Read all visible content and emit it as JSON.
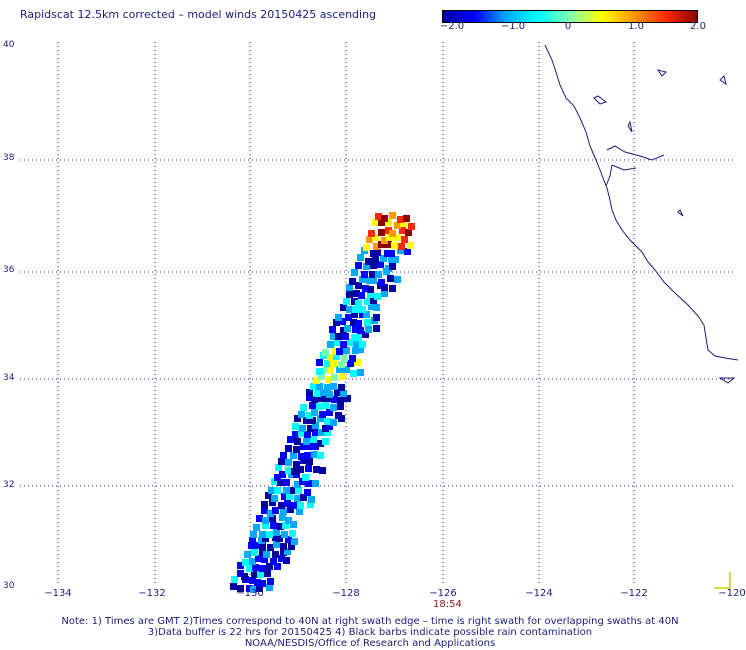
{
  "title": "Rapidscat 12.5km corrected – model winds 20150425 ascending",
  "colorbar": {
    "labels": [
      "−2.0",
      "−1.0",
      "0",
      "1.0",
      "2.0"
    ],
    "colors": [
      "#0000a0",
      "#0000ff",
      "#00aaff",
      "#00ffff",
      "#80ffb0",
      "#ffff00",
      "#ff9900",
      "#ff2a00",
      "#8b0000"
    ]
  },
  "y_labels": [
    "40",
    "38",
    "36",
    "34",
    "32",
    "30"
  ],
  "x_labels": [
    "−134",
    "−132",
    "−130",
    "−128",
    "−126",
    "−124",
    "−122",
    "−120"
  ],
  "time_label": "18:54",
  "notes": [
    "Note: 1) Times are GMT 2)Times correspond to 40N at right swath edge – time is right swath for overlapping swaths at 40N",
    "3)Data buffer is 22 hrs for 20150425 4) Black barbs indicate possible rain contamination",
    "NOAA/NESDIS/Office of Research and Applications"
  ],
  "map": {
    "lon_range": [
      -135,
      -120
    ],
    "lat_range": [
      30,
      40
    ],
    "grid": "dotted",
    "coastline_color": "#1c1c7a"
  }
}
